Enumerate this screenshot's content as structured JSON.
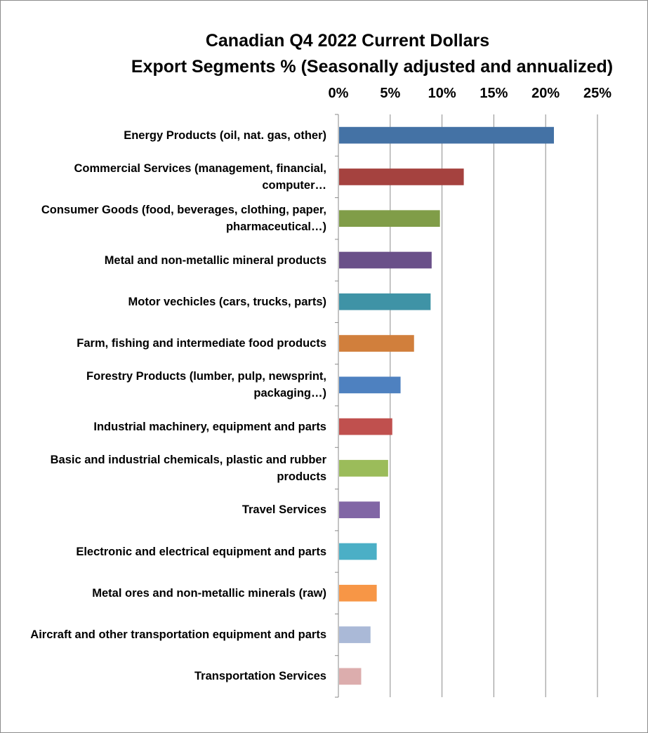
{
  "chart_data": {
    "type": "bar",
    "orientation": "horizontal",
    "title_lines": [
      "Canadian Q4 2022 Current Dollars",
      "Export Segments % (Seasonally adjusted and annualized)"
    ],
    "xaxis": {
      "position": "top",
      "range": [
        0,
        25
      ],
      "ticks": [
        0,
        5,
        10,
        15,
        20,
        25
      ],
      "tick_labels": [
        "0%",
        "5%",
        "10%",
        "15%",
        "20%",
        "25%"
      ]
    },
    "grid": "vertical major gridlines",
    "legend": "none",
    "categories": [
      "Energy Products (oil, nat. gas, other)",
      "Commercial Services (management, financial, computer…",
      "Consumer Goods (food, beverages, clothing, paper, pharmaceutical…)",
      "Metal and non-metallic mineral products",
      "Motor vechicles (cars, trucks, parts)",
      "Farm, fishing and intermediate food products",
      "Forestry Products (lumber, pulp, newsprint, packaging…)",
      "Industrial machinery, equipment and parts",
      "Basic and industrial chemicals, plastic and rubber products",
      "Travel Services",
      "Electronic and electrical equipment and parts",
      "Metal ores and non-metallic minerals (raw)",
      "Aircraft and other transportation equipment and parts",
      "Transportation Services"
    ],
    "values": [
      20.8,
      12.1,
      9.8,
      9.0,
      8.9,
      7.3,
      6.0,
      5.2,
      4.8,
      4.0,
      3.7,
      3.7,
      3.1,
      2.2
    ],
    "colors": [
      "#4472a5",
      "#a5423f",
      "#809d48",
      "#6a5089",
      "#3f93a6",
      "#d17f3c",
      "#4e81c0",
      "#c0504e",
      "#9bbc5a",
      "#8166a5",
      "#4bafc6",
      "#f79646",
      "#aab9d7",
      "#dcadad"
    ]
  }
}
